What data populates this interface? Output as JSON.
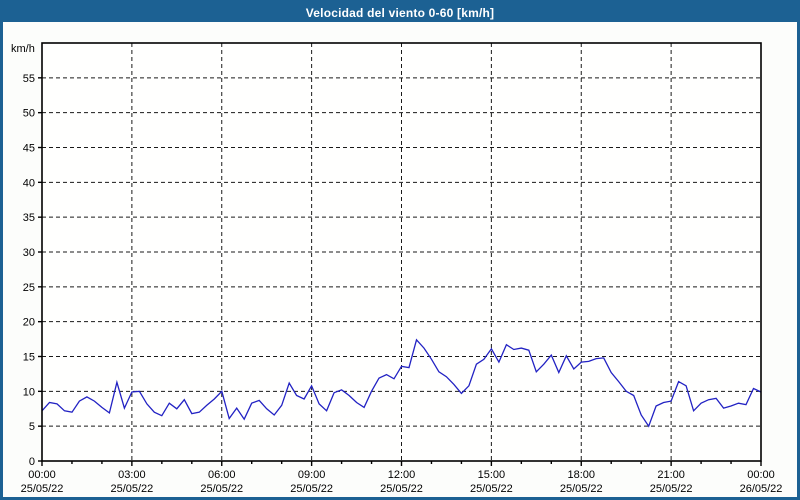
{
  "window": {
    "title": "Velocidad del viento 0-60 [km/h]"
  },
  "colors": {
    "titlebar_bg": "#1c6193",
    "frame_border": "#1c6193",
    "page_bg": "#fcfdfb",
    "plot_bg": "#fffffe",
    "grid": "#1a1a1a",
    "axis": "#000000",
    "line": "#2222c3",
    "title_text": "#ffffff",
    "label_text": "#000000"
  },
  "chart_data": {
    "type": "line",
    "title": "Velocidad del viento 0-60 [km/h]",
    "y_unit_label": "km/h",
    "ylim": [
      0,
      60
    ],
    "y_ticks": [
      0,
      5,
      10,
      15,
      20,
      25,
      30,
      35,
      40,
      45,
      50,
      55
    ],
    "x_span_hours": 24,
    "x_major_tick_every_hours": 3,
    "x_minor_tick_every_hours": 1,
    "grid": "dashed black at every major tick, both axes",
    "legend": "none",
    "x_ticks": [
      {
        "time": "00:00",
        "date": "25/05/22"
      },
      {
        "time": "03:00",
        "date": "25/05/22"
      },
      {
        "time": "06:00",
        "date": "25/05/22"
      },
      {
        "time": "09:00",
        "date": "25/05/22"
      },
      {
        "time": "12:00",
        "date": "25/05/22"
      },
      {
        "time": "15:00",
        "date": "25/05/22"
      },
      {
        "time": "18:00",
        "date": "25/05/22"
      },
      {
        "time": "21:00",
        "date": "25/05/22"
      },
      {
        "time": "00:00",
        "date": "26/05/22"
      }
    ],
    "series": [
      {
        "name": "wind_speed_kmh",
        "time_start": "00:00",
        "time_step_minutes": 15,
        "values": [
          7.2,
          8.4,
          8.2,
          7.2,
          7.0,
          8.6,
          9.2,
          8.6,
          7.7,
          6.9,
          11.3,
          7.6,
          9.9,
          10.0,
          8.2,
          7.0,
          6.5,
          8.3,
          7.5,
          8.8,
          6.8,
          7.0,
          8.0,
          8.9,
          10.0,
          6.1,
          7.6,
          6.0,
          8.3,
          8.7,
          7.5,
          6.6,
          8.0,
          11.2,
          9.4,
          8.9,
          10.8,
          8.2,
          7.2,
          9.8,
          10.2,
          9.4,
          8.4,
          7.7,
          10.0,
          11.9,
          12.4,
          11.8,
          13.6,
          13.4,
          17.4,
          16.2,
          14.6,
          12.8,
          12.1,
          11.0,
          9.7,
          10.8,
          13.9,
          14.6,
          16.1,
          14.2,
          16.7,
          16.0,
          16.2,
          15.9,
          12.8,
          13.9,
          15.2,
          12.7,
          15.1,
          13.2,
          14.2,
          14.3,
          14.7,
          14.8,
          12.7,
          11.4,
          10.0,
          9.4,
          6.6,
          5.0,
          7.9,
          8.4,
          8.6,
          11.4,
          10.8,
          7.2,
          8.3,
          8.8,
          9.0,
          7.6,
          7.9,
          8.3,
          8.1,
          10.4,
          9.9
        ]
      }
    ]
  }
}
